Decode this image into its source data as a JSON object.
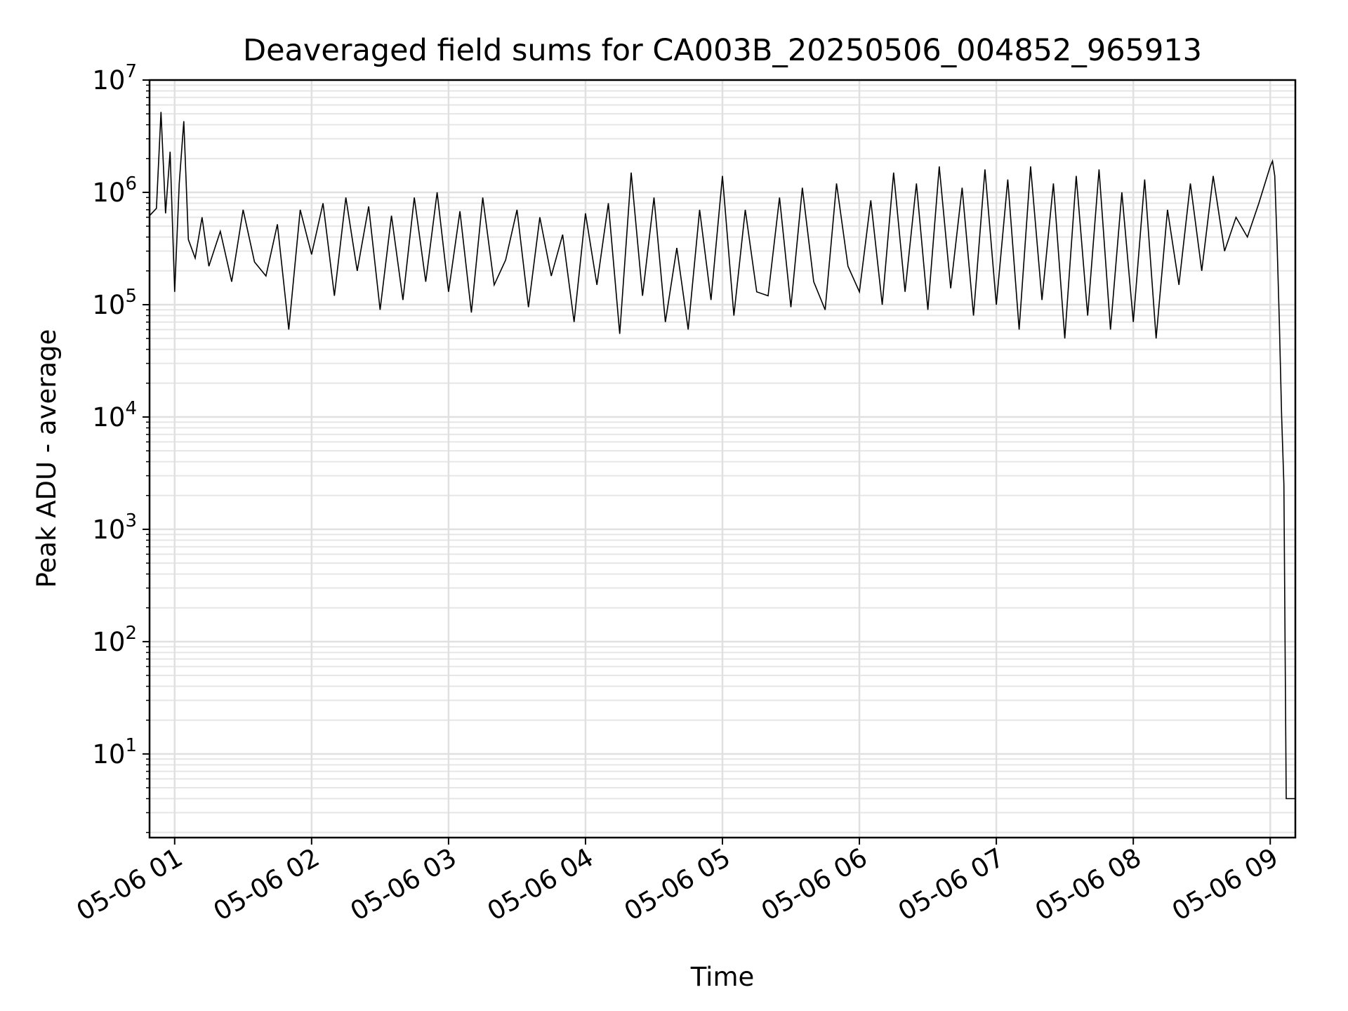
{
  "chart_data": {
    "type": "line",
    "title": "Deaveraged field sums for CA003B_20250506_004852_965913",
    "xlabel": "Time",
    "ylabel": "Peak ADU - average",
    "yscale": "log",
    "ylim": [
      1.8,
      10000000
    ],
    "xlim": [
      "05-06 00:49",
      "05-06 09:11"
    ],
    "grid": true,
    "line_color": "#000000",
    "x_ticks": [
      {
        "time": "05-06 01:00",
        "label": "05-06 01"
      },
      {
        "time": "05-06 02:00",
        "label": "05-06 02"
      },
      {
        "time": "05-06 03:00",
        "label": "05-06 03"
      },
      {
        "time": "05-06 04:00",
        "label": "05-06 04"
      },
      {
        "time": "05-06 05:00",
        "label": "05-06 05"
      },
      {
        "time": "05-06 06:00",
        "label": "05-06 06"
      },
      {
        "time": "05-06 07:00",
        "label": "05-06 07"
      },
      {
        "time": "05-06 08:00",
        "label": "05-06 08"
      },
      {
        "time": "05-06 09:00",
        "label": "05-06 09"
      }
    ],
    "y_ticks": [
      {
        "value": 10,
        "base": "10",
        "exp": "1"
      },
      {
        "value": 100,
        "base": "10",
        "exp": "2"
      },
      {
        "value": 1000,
        "base": "10",
        "exp": "3"
      },
      {
        "value": 10000,
        "base": "10",
        "exp": "4"
      },
      {
        "value": 100000,
        "base": "10",
        "exp": "5"
      },
      {
        "value": 1000000,
        "base": "10",
        "exp": "6"
      },
      {
        "value": 10000000,
        "base": "10",
        "exp": "7"
      }
    ],
    "series": [
      {
        "x": [
          "05-06 00:49",
          "05-06 00:52",
          "05-06 00:54",
          "05-06 00:56",
          "05-06 00:58",
          "05-06 01:00",
          "05-06 01:02",
          "05-06 01:04",
          "05-06 01:06",
          "05-06 01:09",
          "05-06 01:12",
          "05-06 01:15",
          "05-06 01:20",
          "05-06 01:25",
          "05-06 01:30",
          "05-06 01:35",
          "05-06 01:40",
          "05-06 01:45",
          "05-06 01:50",
          "05-06 01:55",
          "05-06 02:00",
          "05-06 02:05",
          "05-06 02:10",
          "05-06 02:15",
          "05-06 02:20",
          "05-06 02:25",
          "05-06 02:30",
          "05-06 02:35",
          "05-06 02:40",
          "05-06 02:45",
          "05-06 02:50",
          "05-06 02:55",
          "05-06 03:00",
          "05-06 03:05",
          "05-06 03:10",
          "05-06 03:15",
          "05-06 03:20",
          "05-06 03:25",
          "05-06 03:30",
          "05-06 03:35",
          "05-06 03:40",
          "05-06 03:45",
          "05-06 03:50",
          "05-06 03:55",
          "05-06 04:00",
          "05-06 04:05",
          "05-06 04:10",
          "05-06 04:15",
          "05-06 04:20",
          "05-06 04:25",
          "05-06 04:30",
          "05-06 04:35",
          "05-06 04:40",
          "05-06 04:45",
          "05-06 04:50",
          "05-06 04:55",
          "05-06 05:00",
          "05-06 05:05",
          "05-06 05:10",
          "05-06 05:15",
          "05-06 05:20",
          "05-06 05:25",
          "05-06 05:30",
          "05-06 05:35",
          "05-06 05:40",
          "05-06 05:45",
          "05-06 05:50",
          "05-06 05:55",
          "05-06 06:00",
          "05-06 06:05",
          "05-06 06:10",
          "05-06 06:15",
          "05-06 06:20",
          "05-06 06:25",
          "05-06 06:30",
          "05-06 06:35",
          "05-06 06:40",
          "05-06 06:45",
          "05-06 06:50",
          "05-06 06:55",
          "05-06 07:00",
          "05-06 07:05",
          "05-06 07:10",
          "05-06 07:15",
          "05-06 07:20",
          "05-06 07:25",
          "05-06 07:30",
          "05-06 07:35",
          "05-06 07:40",
          "05-06 07:45",
          "05-06 07:50",
          "05-06 07:55",
          "05-06 08:00",
          "05-06 08:05",
          "05-06 08:10",
          "05-06 08:15",
          "05-06 08:20",
          "05-06 08:25",
          "05-06 08:30",
          "05-06 08:35",
          "05-06 08:40",
          "05-06 08:45",
          "05-06 08:50",
          "05-06 08:55",
          "05-06 09:00",
          "05-06 09:01",
          "05-06 09:02",
          "05-06 09:03",
          "05-06 09:04",
          "05-06 09:05",
          "05-06 09:06",
          "05-06 09:07",
          "05-06 09:08",
          "05-06 09:09",
          "05-06 09:10",
          "05-06 09:11"
        ],
        "y": [
          620000,
          720000,
          5200000,
          650000,
          2300000,
          130000,
          1200000,
          4300000,
          380000,
          260000,
          600000,
          220000,
          450000,
          160000,
          700000,
          240000,
          180000,
          520000,
          60000,
          700000,
          280000,
          800000,
          120000,
          900000,
          200000,
          750000,
          90000,
          620000,
          110000,
          900000,
          160000,
          1000000,
          130000,
          680000,
          85000,
          900000,
          150000,
          250000,
          700000,
          95000,
          600000,
          180000,
          420000,
          70000,
          650000,
          150000,
          800000,
          55000,
          1500000,
          120000,
          900000,
          70000,
          320000,
          60000,
          700000,
          110000,
          1400000,
          80000,
          700000,
          130000,
          120000,
          900000,
          95000,
          1100000,
          160000,
          90000,
          1200000,
          220000,
          130000,
          850000,
          100000,
          1500000,
          130000,
          1200000,
          90000,
          1700000,
          140000,
          1100000,
          80000,
          1600000,
          100000,
          1300000,
          60000,
          1700000,
          110000,
          1200000,
          50000,
          1400000,
          80000,
          1600000,
          60000,
          1000000,
          70000,
          1300000,
          50000,
          700000,
          150000,
          1200000,
          200000,
          1400000,
          300000,
          600000,
          400000,
          800000,
          1700000,
          1900000,
          1400000,
          350000,
          70000,
          10000,
          2500,
          4,
          4,
          4,
          4,
          4
        ]
      }
    ]
  }
}
